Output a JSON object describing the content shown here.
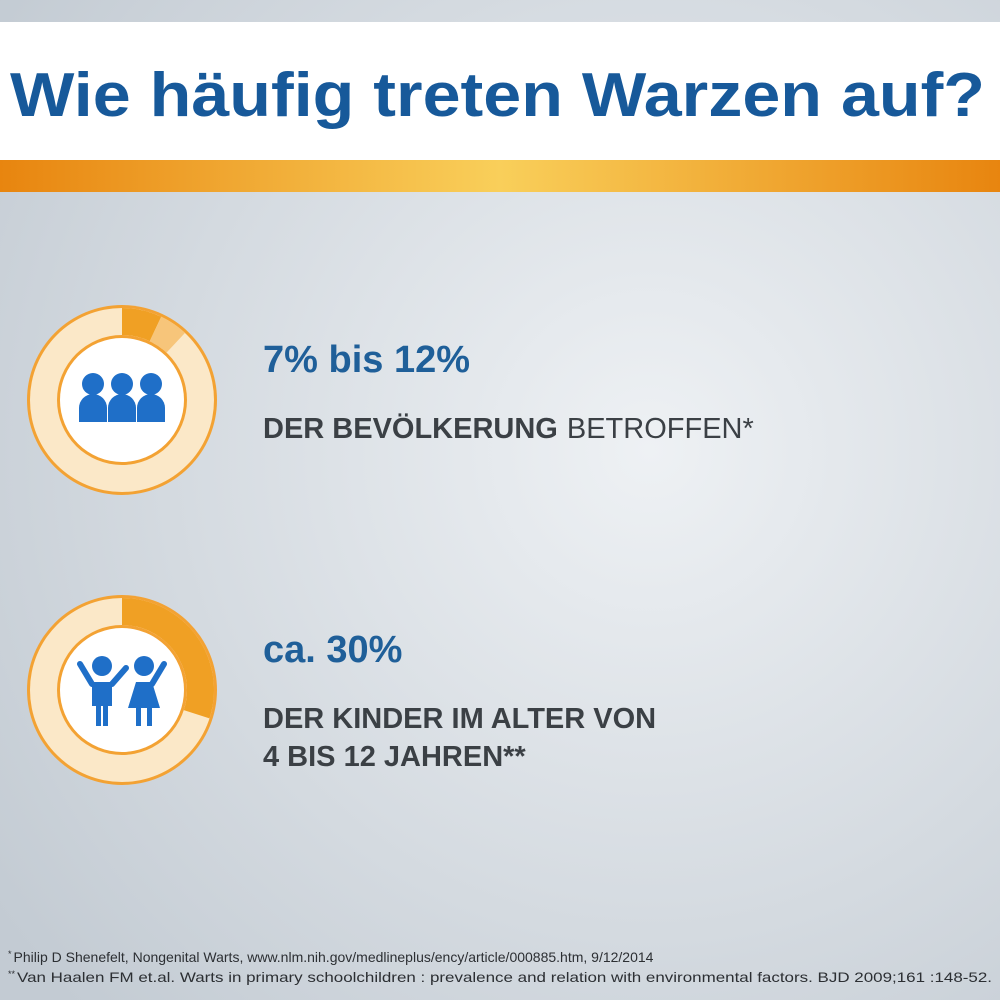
{
  "header": {
    "title": "Wie häufig treten Warzen auf?"
  },
  "facts": [
    {
      "headline": "7% bis 12%",
      "text_bold": "DER BEVÖLKERUNG",
      "text_regular": "BETROFFEN*"
    },
    {
      "headline": "ca. 30%",
      "lines": [
        "DER KINDER IM ALTER VON",
        "4 BIS 12 JAHREN**"
      ]
    }
  ],
  "footnotes": [
    {
      "marker": "*",
      "text": "Philip D Shenefelt, Nongenital Warts, www.nlm.nih.gov/medlineplus/ency/article/000885.htm, 9/12/2014"
    },
    {
      "marker": "**",
      "text": "Van Haalen FM et.al. Warts in primary schoolchildren : prevalence and relation with environmental factors. BJD 2009;161 :148-52."
    }
  ]
}
